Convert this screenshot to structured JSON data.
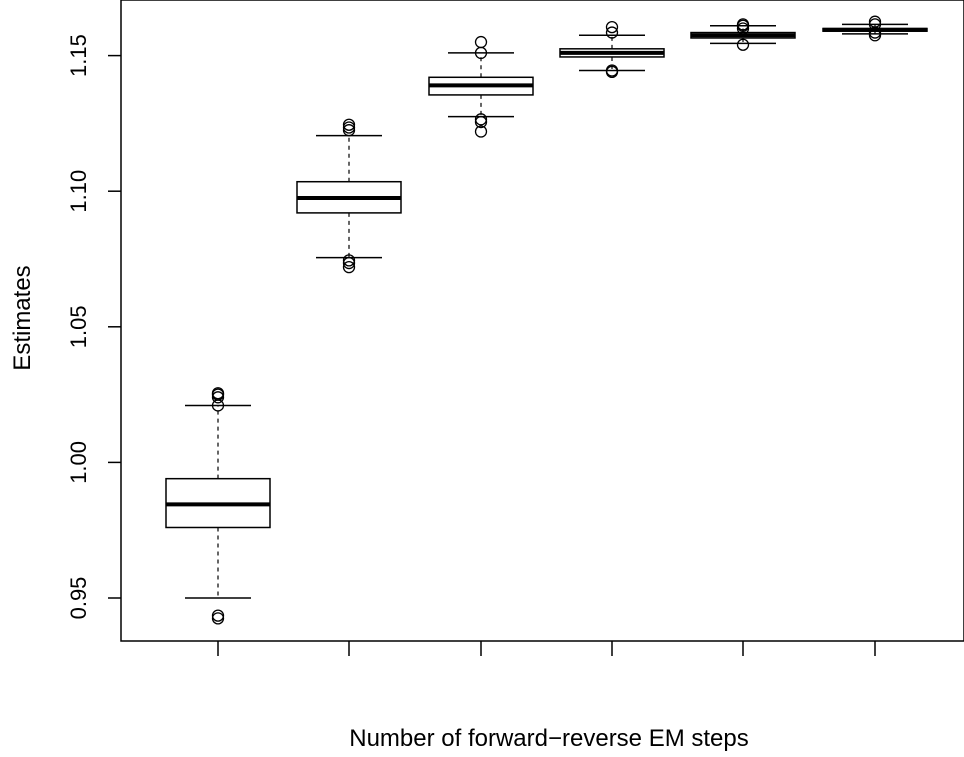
{
  "chart_data": {
    "type": "box",
    "title": "",
    "xlabel": "Number of forward−reverse EM steps",
    "ylabel": "Estimates",
    "ylim": [
      0.93,
      1.165
    ],
    "yticks": [
      0.95,
      1.0,
      1.05,
      1.1,
      1.15
    ],
    "ytick_labels": [
      "0.95",
      "1.00",
      "1.05",
      "1.10",
      "1.15"
    ],
    "categories": [
      "",
      "",
      "",
      "",
      "",
      ""
    ],
    "grid": false,
    "legend": "none",
    "boxes": [
      {
        "whisker_low": 0.95,
        "q1": 0.976,
        "median": 0.9845,
        "q3": 0.994,
        "whisker_high": 1.021,
        "outliers": [
          0.9425,
          0.9435,
          1.021,
          1.024,
          1.025,
          1.0255
        ]
      },
      {
        "whisker_low": 1.0755,
        "q1": 1.092,
        "median": 1.0975,
        "q3": 1.1035,
        "whisker_high": 1.1205,
        "outliers": [
          1.072,
          1.0735,
          1.0745,
          1.1225,
          1.1235,
          1.1245
        ]
      },
      {
        "whisker_low": 1.1275,
        "q1": 1.1355,
        "median": 1.139,
        "q3": 1.142,
        "whisker_high": 1.151,
        "outliers": [
          1.122,
          1.1255,
          1.1265,
          1.151,
          1.155
        ]
      },
      {
        "whisker_low": 1.1445,
        "q1": 1.1495,
        "median": 1.151,
        "q3": 1.1525,
        "whisker_high": 1.1575,
        "outliers": [
          1.144,
          1.1445,
          1.1585,
          1.1605
        ]
      },
      {
        "whisker_low": 1.1545,
        "q1": 1.1565,
        "median": 1.1575,
        "q3": 1.1585,
        "whisker_high": 1.161,
        "outliers": [
          1.154,
          1.16,
          1.161,
          1.1615
        ]
      },
      {
        "whisker_low": 1.158,
        "q1": 1.159,
        "median": 1.1595,
        "q3": 1.16,
        "whisker_high": 1.1615,
        "outliers": [
          1.1575,
          1.1585,
          1.1615,
          1.1625
        ]
      }
    ]
  }
}
